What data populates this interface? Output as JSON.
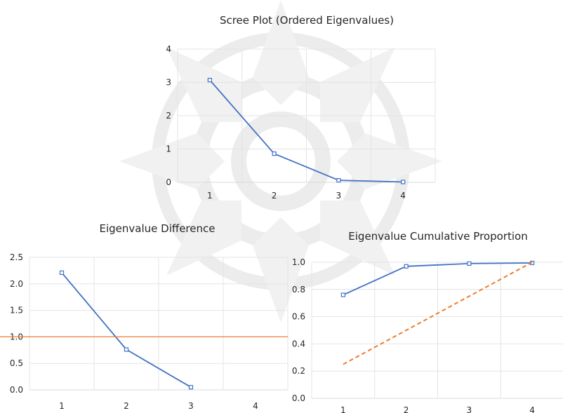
{
  "chart_data": [
    {
      "type": "line",
      "title": "Scree Plot (Ordered Eigenvalues)",
      "categories": [
        "1",
        "2",
        "3",
        "4"
      ],
      "ylim": [
        0,
        4
      ],
      "yticks": [
        "0",
        "1",
        "2",
        "3",
        "4"
      ],
      "grid": true,
      "series": [
        {
          "values": [
            3.07,
            0.86,
            0.06,
            0.01
          ],
          "color": "#4472C4",
          "style": "solid",
          "markers": true
        }
      ]
    },
    {
      "type": "line",
      "title": "Eigenvalue Difference",
      "categories": [
        "1",
        "2",
        "3",
        "4"
      ],
      "ylim": [
        0,
        2.5
      ],
      "yticks": [
        "0.0",
        "0.5",
        "1.0",
        "1.5",
        "2.0",
        "2.5"
      ],
      "grid": true,
      "series": [
        {
          "values": [
            2.21,
            0.76,
            0.05,
            null
          ],
          "color": "#4472C4",
          "style": "solid",
          "markers": true
        },
        {
          "values": [
            1.0,
            1.0,
            1.0,
            1.0
          ],
          "color": "#ED7D31",
          "style": "reference",
          "markers": false
        }
      ]
    },
    {
      "type": "line",
      "title": "Eigenvalue Cumulative Proportion",
      "categories": [
        "1",
        "2",
        "3",
        "4"
      ],
      "ylim": [
        0,
        1.0
      ],
      "yticks": [
        "0.0",
        "0.2",
        "0.4",
        "0.6",
        "0.8",
        "1.0"
      ],
      "grid": true,
      "series": [
        {
          "values": [
            0.76,
            0.97,
            0.99,
            0.995
          ],
          "color": "#4472C4",
          "style": "solid",
          "markers": true
        },
        {
          "values": [
            0.25,
            0.5,
            0.75,
            1.0
          ],
          "color": "#ED7D31",
          "style": "dashed",
          "markers": false
        }
      ]
    }
  ]
}
